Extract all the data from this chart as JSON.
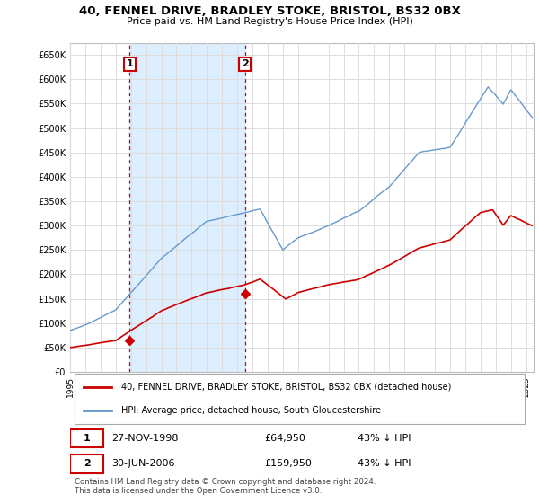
{
  "title": "40, FENNEL DRIVE, BRADLEY STOKE, BRISTOL, BS32 0BX",
  "subtitle": "Price paid vs. HM Land Registry's House Price Index (HPI)",
  "legend_line1": "40, FENNEL DRIVE, BRADLEY STOKE, BRISTOL, BS32 0BX (detached house)",
  "legend_line2": "HPI: Average price, detached house, South Gloucestershire",
  "footer": "Contains HM Land Registry data © Crown copyright and database right 2024.\nThis data is licensed under the Open Government Licence v3.0.",
  "transaction1_date": "27-NOV-1998",
  "transaction1_price": "£64,950",
  "transaction1_hpi": "43% ↓ HPI",
  "transaction2_date": "30-JUN-2006",
  "transaction2_price": "£159,950",
  "transaction2_hpi": "43% ↓ HPI",
  "red_color": "#cc0000",
  "blue_color": "#6699cc",
  "shade_color": "#ddeeff",
  "vline_color": "#cc0000",
  "grid_color": "#dddddd",
  "background_color": "#ffffff",
  "ylim": [
    0,
    675000
  ],
  "yticks": [
    0,
    50000,
    100000,
    150000,
    200000,
    250000,
    300000,
    350000,
    400000,
    450000,
    500000,
    550000,
    600000,
    650000
  ],
  "xlim_start": 1995.0,
  "xlim_end": 2025.5,
  "transaction1_x": 1998.92,
  "transaction1_y": 64950,
  "transaction2_x": 2006.5,
  "transaction2_y": 159950
}
